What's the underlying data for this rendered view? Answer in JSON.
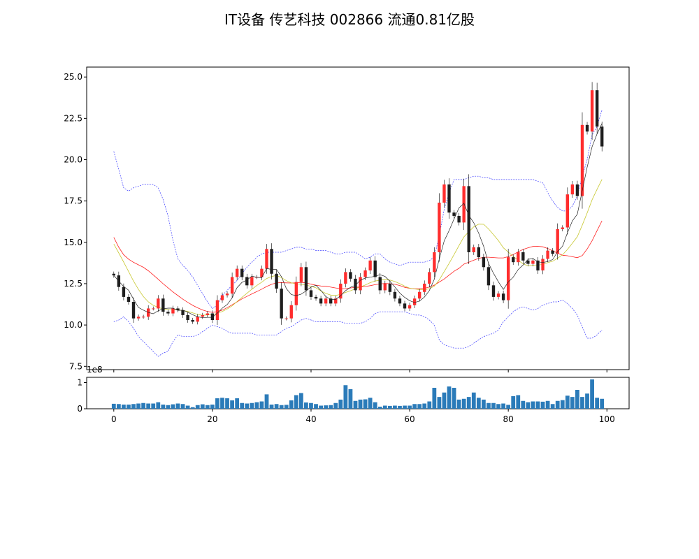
{
  "chart_data": {
    "type": "candlestick",
    "title": "IT设备 传艺科技 002866 流通0.81亿股",
    "volume_offset_label": "1e8",
    "price_axis": {
      "ylim": [
        7.3,
        25.6
      ],
      "ticks": [
        7.5,
        10.0,
        12.5,
        15.0,
        17.5,
        20.0,
        22.5,
        25.0
      ],
      "tick_labels": [
        "7.5",
        "10.0",
        "12.5",
        "15.0",
        "17.5",
        "20.0",
        "22.5",
        "25.0"
      ]
    },
    "volume_axis": {
      "ylim": [
        0,
        1.2
      ],
      "ticks": [
        0,
        1
      ],
      "tick_labels": [
        "0",
        "1"
      ]
    },
    "x_axis": {
      "xlim": [
        -5.5,
        104.5
      ],
      "ticks": [
        0,
        20,
        40,
        60,
        80,
        100
      ],
      "tick_labels": [
        "0",
        "20",
        "40",
        "60",
        "80",
        "100"
      ]
    },
    "colors": {
      "up": "#ff2d2d",
      "down": "#1e1e1e",
      "ma_short": "#222222",
      "ma_mid": "#c8c832",
      "ma_long": "#ff2020",
      "band": "#3c3cff",
      "volume": "#2b7bb9"
    },
    "series": [
      {
        "name": "close",
        "values": [
          13.0,
          12.3,
          11.7,
          11.4,
          10.4,
          10.5,
          10.5,
          11.0,
          11.0,
          11.6,
          10.8,
          10.7,
          11.0,
          10.9,
          10.6,
          10.3,
          10.2,
          10.5,
          10.6,
          10.7,
          10.3,
          11.5,
          11.8,
          11.9,
          12.9,
          13.4,
          12.9,
          12.4,
          12.9,
          12.9,
          13.4,
          14.6,
          13.1,
          12.2,
          10.4,
          10.4,
          11.2,
          12.6,
          13.5,
          12.1,
          11.7,
          11.6,
          11.3,
          11.6,
          11.3,
          11.6,
          12.5,
          13.2,
          12.8,
          12.1,
          12.9,
          13.3,
          13.9,
          12.9,
          12.1,
          12.5,
          12.0,
          11.6,
          11.3,
          11.0,
          11.2,
          11.6,
          12.0,
          12.5,
          13.2,
          14.4,
          17.4,
          18.5,
          16.8,
          16.6,
          16.2,
          18.4,
          14.4,
          14.7,
          14.1,
          13.5,
          12.4,
          11.7,
          11.9,
          11.5,
          14.1,
          13.8,
          14.4,
          13.9,
          13.7,
          13.9,
          13.3,
          14.0,
          14.5,
          14.3,
          15.8,
          15.9,
          17.9,
          18.5,
          17.8,
          22.1,
          21.7,
          24.2,
          22.0,
          20.8
        ]
      },
      {
        "name": "volume_1e8",
        "values": [
          0.19,
          0.18,
          0.16,
          0.16,
          0.18,
          0.2,
          0.22,
          0.2,
          0.2,
          0.25,
          0.16,
          0.14,
          0.17,
          0.2,
          0.18,
          0.12,
          0.06,
          0.14,
          0.17,
          0.14,
          0.16,
          0.4,
          0.42,
          0.4,
          0.32,
          0.4,
          0.22,
          0.2,
          0.22,
          0.25,
          0.28,
          0.55,
          0.16,
          0.18,
          0.14,
          0.15,
          0.32,
          0.52,
          0.6,
          0.24,
          0.22,
          0.18,
          0.12,
          0.13,
          0.14,
          0.22,
          0.35,
          0.9,
          0.75,
          0.3,
          0.35,
          0.36,
          0.42,
          0.25,
          0.08,
          0.12,
          0.11,
          0.12,
          0.11,
          0.12,
          0.12,
          0.18,
          0.18,
          0.2,
          0.28,
          0.8,
          0.45,
          0.62,
          0.85,
          0.8,
          0.35,
          0.38,
          0.45,
          0.62,
          0.42,
          0.35,
          0.22,
          0.22,
          0.18,
          0.2,
          0.15,
          0.48,
          0.52,
          0.3,
          0.25,
          0.28,
          0.28,
          0.27,
          0.3,
          0.18,
          0.3,
          0.33,
          0.5,
          0.45,
          0.72,
          0.45,
          0.58,
          1.12,
          0.42,
          0.38
        ]
      },
      {
        "name": "ma_short",
        "values": [
          13.0,
          12.65,
          12.33,
          12.1,
          11.56,
          11.06,
          10.9,
          10.76,
          10.68,
          10.86,
          10.98,
          11.02,
          11.02,
          10.88,
          10.9,
          10.78,
          10.62,
          10.5,
          10.44,
          10.46,
          10.46,
          10.72,
          11.02,
          11.24,
          11.64,
          12.26,
          12.58,
          12.72,
          12.96,
          12.88,
          12.86,
          13.42,
          13.36,
          13.36,
          12.92,
          12.2,
          11.84,
          11.78,
          11.87,
          12.06,
          12.3,
          12.4,
          12.09,
          11.72,
          11.55,
          11.55,
          11.77,
          12.08,
          12.28,
          12.41,
          12.71,
          12.84,
          12.89,
          12.95,
          13.04,
          12.94,
          12.64,
          12.3,
          11.93,
          11.67,
          11.47,
          11.36,
          11.45,
          11.69,
          12.09,
          12.77,
          13.99,
          15.09,
          15.71,
          16.42,
          17.08,
          17.36,
          16.63,
          16.18,
          15.56,
          14.76,
          13.73,
          13.13,
          12.61,
          12.15,
          12.6,
          12.89,
          13.35,
          13.63,
          13.97,
          14.02,
          13.82,
          13.78,
          13.84,
          13.96,
          14.44,
          14.77,
          15.58,
          16.3,
          16.7,
          18.13,
          19.55,
          20.79,
          21.55,
          22.19
        ]
      },
      {
        "name": "ma_mid",
        "values": [
          14.9,
          14.36,
          13.81,
          13.23,
          12.66,
          12.15,
          11.72,
          11.4,
          11.19,
          11.07,
          10.97,
          10.94,
          10.91,
          10.91,
          10.88,
          10.82,
          10.73,
          10.64,
          10.59,
          10.61,
          10.62,
          10.71,
          10.82,
          10.97,
          11.16,
          11.42,
          11.67,
          11.92,
          12.16,
          12.39,
          12.59,
          12.81,
          12.93,
          13.0,
          12.86,
          12.68,
          12.55,
          12.48,
          12.46,
          12.41,
          12.34,
          12.25,
          12.06,
          11.91,
          11.81,
          11.79,
          11.85,
          11.97,
          12.07,
          12.19,
          12.31,
          12.42,
          12.56,
          12.66,
          12.72,
          12.74,
          12.72,
          12.63,
          12.5,
          12.35,
          12.23,
          12.18,
          12.14,
          12.13,
          12.2,
          12.35,
          12.73,
          13.23,
          13.73,
          14.26,
          14.8,
          15.33,
          15.64,
          15.94,
          16.1,
          16.09,
          15.81,
          15.46,
          15.1,
          14.67,
          14.41,
          14.15,
          13.92,
          13.7,
          13.58,
          13.61,
          13.62,
          13.67,
          13.77,
          13.86,
          14.04,
          14.25,
          14.57,
          14.95,
          15.34,
          16.04,
          16.78,
          17.58,
          18.2,
          18.81
        ]
      },
      {
        "name": "ma_long",
        "values": [
          15.3,
          14.7,
          14.25,
          13.98,
          13.79,
          13.64,
          13.49,
          13.28,
          13.03,
          12.77,
          12.5,
          12.25,
          12.0,
          11.78,
          11.56,
          11.37,
          11.19,
          11.04,
          10.91,
          10.82,
          10.76,
          10.8,
          10.9,
          11.05,
          11.22,
          11.4,
          11.58,
          11.73,
          11.88,
          12.02,
          12.17,
          12.33,
          12.46,
          12.55,
          12.56,
          12.55,
          12.54,
          12.55,
          12.58,
          12.55,
          12.47,
          12.41,
          12.36,
          12.34,
          12.29,
          12.24,
          12.2,
          12.2,
          12.24,
          12.28,
          12.3,
          12.33,
          12.38,
          12.44,
          12.48,
          12.51,
          12.5,
          12.46,
          12.39,
          12.28,
          12.22,
          12.19,
          12.19,
          12.22,
          12.3,
          12.41,
          12.6,
          12.78,
          13.02,
          13.25,
          13.43,
          13.68,
          13.8,
          13.92,
          14.03,
          14.1,
          14.1,
          14.08,
          14.06,
          14.06,
          14.14,
          14.26,
          14.43,
          14.57,
          14.67,
          14.75,
          14.76,
          14.73,
          14.63,
          14.49,
          14.34,
          14.22,
          14.19,
          14.13,
          14.07,
          14.2,
          14.6,
          15.1,
          15.7,
          16.3
        ]
      },
      {
        "name": "band_upper",
        "values": [
          20.5,
          19.4,
          18.3,
          18.1,
          18.3,
          18.4,
          18.5,
          18.5,
          18.5,
          18.3,
          17.6,
          16.6,
          15.1,
          14.0,
          13.6,
          13.3,
          12.9,
          12.4,
          11.9,
          11.4,
          11.0,
          11.2,
          11.8,
          12.1,
          12.4,
          12.7,
          13.1,
          13.5,
          13.8,
          14.1,
          14.3,
          14.4,
          14.4,
          14.4,
          14.4,
          14.5,
          14.6,
          14.7,
          14.7,
          14.6,
          14.6,
          14.5,
          14.5,
          14.5,
          14.4,
          14.3,
          14.3,
          14.4,
          14.4,
          14.4,
          14.2,
          14.0,
          14.1,
          14.3,
          14.3,
          14.0,
          13.8,
          13.7,
          13.6,
          13.7,
          13.8,
          13.8,
          13.8,
          13.8,
          13.9,
          14.1,
          15.4,
          17.0,
          18.0,
          18.8,
          18.8,
          18.8,
          18.9,
          19.0,
          19.0,
          18.9,
          18.9,
          18.8,
          18.8,
          18.8,
          18.8,
          18.8,
          18.8,
          18.8,
          18.8,
          18.8,
          18.7,
          18.6,
          18.0,
          17.5,
          17.1,
          16.9,
          16.9,
          17.2,
          17.8,
          19.0,
          20.0,
          21.5,
          22.0,
          23.0
        ]
      },
      {
        "name": "band_lower",
        "values": [
          10.2,
          10.3,
          10.5,
          10.2,
          9.8,
          9.3,
          9.0,
          8.7,
          8.4,
          8.1,
          8.3,
          8.4,
          9.0,
          9.4,
          9.3,
          9.3,
          9.3,
          9.4,
          9.6,
          9.8,
          10.0,
          9.9,
          9.8,
          9.6,
          9.5,
          9.5,
          9.5,
          9.5,
          9.5,
          9.4,
          9.4,
          9.4,
          9.4,
          9.4,
          9.6,
          9.8,
          9.9,
          10.1,
          10.3,
          10.4,
          10.3,
          10.2,
          10.2,
          10.2,
          10.2,
          10.2,
          10.2,
          10.1,
          10.1,
          10.1,
          10.1,
          10.2,
          10.4,
          10.7,
          10.8,
          10.8,
          10.8,
          10.8,
          10.8,
          10.8,
          10.7,
          10.6,
          10.6,
          10.5,
          10.3,
          10.0,
          9.1,
          8.8,
          8.7,
          8.6,
          8.6,
          8.6,
          8.7,
          8.9,
          9.1,
          9.3,
          9.4,
          9.5,
          9.7,
          10.2,
          10.5,
          10.8,
          11.0,
          11.1,
          11.0,
          10.9,
          11.0,
          11.2,
          11.3,
          11.4,
          11.4,
          11.5,
          11.3,
          11.0,
          10.6,
          9.9,
          9.2,
          9.2,
          9.4,
          9.7
        ]
      }
    ]
  }
}
